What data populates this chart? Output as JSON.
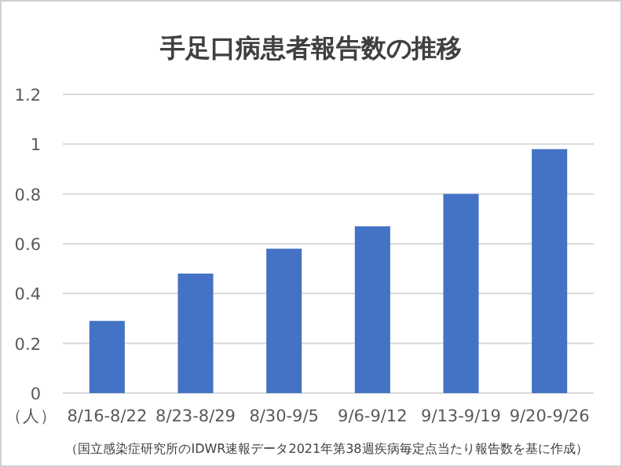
{
  "chart_data": {
    "type": "bar",
    "title": "手足口病患者報告数の推移",
    "ylabel": "（人）",
    "categories": [
      "8/16-8/22",
      "8/23-8/29",
      "8/30-9/5",
      "9/6-9/12",
      "9/13-9/19",
      "9/20-9/26"
    ],
    "values": [
      0.29,
      0.48,
      0.58,
      0.67,
      0.8,
      0.98
    ],
    "color": "#4472c4",
    "ylim": [
      0,
      1.2
    ],
    "yticks": [
      0,
      0.2,
      0.4,
      0.6,
      0.8,
      1,
      1.2
    ],
    "grid": "y",
    "annotations": [
      "（国立感染症研究所のIDWR速報データ2021年第38週疾病毎定点当たり報告数を基に作成）"
    ]
  }
}
